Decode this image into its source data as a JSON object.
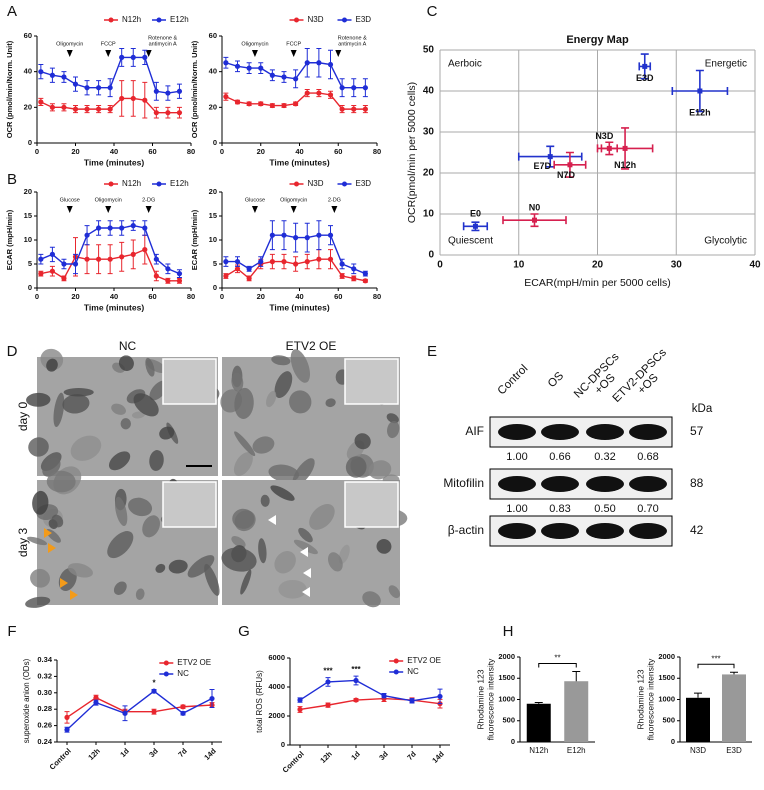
{
  "panel_labels": [
    "A",
    "B",
    "C",
    "D",
    "E",
    "F",
    "G",
    "H"
  ],
  "chart_data": [
    {
      "type": "line",
      "ylabel": "OCR (pmol/min/Norm. Unit)",
      "xlabel": "Time (minutes)",
      "xlim": [
        0,
        80
      ],
      "xticks": [
        0,
        20,
        40,
        60,
        80
      ],
      "ylim": [
        0,
        60
      ],
      "yticks": [
        0,
        20,
        40,
        60
      ],
      "x": [
        2,
        8,
        14,
        20,
        26,
        32,
        38,
        44,
        50,
        56,
        62,
        68,
        74
      ],
      "series": [
        {
          "name": "N12h",
          "color": "#e8262e",
          "values": [
            23,
            20,
            20,
            19,
            19,
            19,
            19,
            25,
            25,
            24,
            17,
            17,
            17
          ],
          "errors": [
            2,
            2,
            2,
            2,
            2,
            2,
            2,
            10,
            10,
            10,
            3,
            3,
            3
          ]
        },
        {
          "name": "E12h",
          "color": "#1f2dd6",
          "values": [
            40,
            38,
            37,
            33,
            31,
            31,
            31,
            48,
            48,
            48,
            29,
            28,
            29
          ],
          "errors": [
            4,
            4,
            3,
            4,
            4,
            4,
            5,
            5,
            5,
            4,
            5,
            4,
            4
          ]
        }
      ],
      "annotations": [
        {
          "text": "Oligomycin",
          "x": 17
        },
        {
          "text": "FCCP",
          "x": 37
        },
        {
          "text": [
            "Rotenone &",
            "antimycin A"
          ],
          "x": 58
        }
      ]
    },
    {
      "type": "line",
      "ylabel": "OCR (pmol/min/Norm. Unit)",
      "xlabel": "Time (minutes)",
      "xlim": [
        0,
        80
      ],
      "xticks": [
        0,
        20,
        40,
        60,
        80
      ],
      "ylim": [
        0,
        60
      ],
      "yticks": [
        0,
        20,
        40,
        60
      ],
      "x": [
        2,
        8,
        14,
        20,
        26,
        32,
        38,
        44,
        50,
        56,
        62,
        68,
        74
      ],
      "series": [
        {
          "name": "N3D",
          "color": "#e8262e",
          "values": [
            26,
            23,
            22,
            22,
            21,
            21,
            22,
            28,
            28,
            27,
            19,
            19,
            19
          ],
          "errors": [
            2,
            1,
            1,
            1,
            1,
            1,
            1,
            2,
            2,
            2,
            2,
            2,
            2
          ]
        },
        {
          "name": "E3D",
          "color": "#1f2dd6",
          "values": [
            45,
            43,
            42,
            42,
            38,
            37,
            36,
            45,
            45,
            44,
            31,
            31,
            31
          ],
          "errors": [
            3,
            3,
            3,
            3,
            3,
            3,
            5,
            8,
            8,
            8,
            5,
            5,
            5
          ]
        }
      ],
      "annotations": [
        {
          "text": "Oligomycin",
          "x": 17
        },
        {
          "text": "FCCP",
          "x": 37
        },
        {
          "text": [
            "Rotenone &",
            "antimycin A"
          ],
          "x": 60
        }
      ]
    },
    {
      "type": "line",
      "ylabel": "ECAR (mpH/min)",
      "xlabel": "Time (minutes)",
      "xlim": [
        0,
        80
      ],
      "xticks": [
        0,
        20,
        40,
        60,
        80
      ],
      "ylim": [
        0,
        20
      ],
      "yticks": [
        0,
        5,
        10,
        15,
        20
      ],
      "x": [
        2,
        8,
        14,
        20,
        26,
        32,
        38,
        44,
        50,
        56,
        62,
        68,
        74
      ],
      "series": [
        {
          "name": "N12h",
          "color": "#e8262e",
          "values": [
            3,
            3.5,
            2,
            6.5,
            6,
            6,
            6,
            6.5,
            7,
            8,
            2.5,
            1.5,
            1.5
          ],
          "errors": [
            0.5,
            1,
            0.5,
            4,
            3,
            3,
            3,
            3,
            3,
            3,
            1,
            0.5,
            0.5
          ]
        },
        {
          "name": "E12h",
          "color": "#1f2dd6",
          "values": [
            6,
            7,
            5,
            5,
            11,
            12.5,
            12.5,
            12.5,
            13,
            12.5,
            6,
            4,
            3
          ],
          "errors": [
            1,
            1.5,
            1,
            2,
            2,
            1.5,
            1.5,
            1.5,
            1,
            1.5,
            1,
            1,
            0.8
          ]
        }
      ],
      "annotations": [
        {
          "text": "Glucose",
          "x": 17
        },
        {
          "text": "Oligomycin",
          "x": 37
        },
        {
          "text": "2-DG",
          "x": 58
        }
      ]
    },
    {
      "type": "line",
      "ylabel": "ECAR (mpH/min)",
      "xlabel": "Time (minutes)",
      "xlim": [
        0,
        80
      ],
      "xticks": [
        0,
        20,
        40,
        60,
        80
      ],
      "ylim": [
        0,
        20
      ],
      "yticks": [
        0,
        5,
        10,
        15,
        20
      ],
      "x": [
        2,
        8,
        14,
        20,
        26,
        32,
        38,
        44,
        50,
        56,
        62,
        68,
        74
      ],
      "series": [
        {
          "name": "N3D",
          "color": "#e8262e",
          "values": [
            2.5,
            4,
            2,
            5,
            5.5,
            5.5,
            5,
            5.5,
            6,
            6,
            2.5,
            2,
            1.5
          ],
          "errors": [
            0.5,
            0.8,
            0.5,
            1,
            1.5,
            1.5,
            1.5,
            1.5,
            2,
            2,
            0.5,
            0.5,
            0.3
          ]
        },
        {
          "name": "E3D",
          "color": "#1f2dd6",
          "values": [
            5.5,
            5.5,
            4,
            5.5,
            11,
            11,
            10.5,
            10.5,
            11,
            11,
            5,
            4,
            3
          ],
          "errors": [
            1,
            1,
            0.5,
            1,
            3,
            3,
            3,
            3,
            3,
            2,
            1,
            1,
            0.5
          ]
        }
      ],
      "annotations": [
        {
          "text": "Glucose",
          "x": 17
        },
        {
          "text": "Oligomycin",
          "x": 37
        },
        {
          "text": "2-DG",
          "x": 58
        }
      ]
    },
    {
      "type": "scatter",
      "title": "Energy Map",
      "xlabel": "ECAR(mpH/min per 5000 cells)",
      "ylabel": "OCR(pmol/min per 5000 cells)",
      "xlim": [
        0,
        40
      ],
      "xticks": [
        0,
        10,
        20,
        30,
        40
      ],
      "ylim": [
        0,
        50
      ],
      "yticks": [
        0,
        10,
        20,
        30,
        40,
        50
      ],
      "grid": true,
      "quadrant_labels": [
        "Aerboic",
        "Energetic",
        "Quiescent",
        "Glycolytic"
      ],
      "points": [
        {
          "label": "E3D",
          "x": 26,
          "y": 46,
          "xerr": 0.7,
          "yerr": 3,
          "color": "#2233cc"
        },
        {
          "label": "E12h",
          "x": 33,
          "y": 40,
          "xerr": 3.5,
          "yerr": 5,
          "color": "#2233cc"
        },
        {
          "label": "N3D",
          "x": 21.5,
          "y": 26,
          "xerr": 1,
          "yerr": 1.5,
          "color": "#d6204f"
        },
        {
          "label": "N12h",
          "x": 23.5,
          "y": 26,
          "xerr": 3.5,
          "yerr": 5,
          "color": "#d6204f"
        },
        {
          "label": "E7D",
          "x": 14,
          "y": 24,
          "xerr": 4,
          "yerr": 2.5,
          "color": "#2233cc"
        },
        {
          "label": "N7D",
          "x": 16.5,
          "y": 22,
          "xerr": 2,
          "yerr": 3,
          "color": "#d6204f"
        },
        {
          "label": "E0",
          "x": 4.5,
          "y": 7,
          "xerr": 1.5,
          "yerr": 1,
          "color": "#2233cc"
        },
        {
          "label": "N0",
          "x": 12,
          "y": 8.5,
          "xerr": 4,
          "yerr": 1.5,
          "color": "#d6204f"
        }
      ]
    },
    {
      "type": "line",
      "ylabel": "superoxide anion (ODs)",
      "categories": [
        "Control",
        "12h",
        "1d",
        "3d",
        "7d",
        "14d"
      ],
      "ylim": [
        0.24,
        0.34
      ],
      "yticks": [
        0.24,
        0.26,
        0.28,
        {
          "value": 0.3,
          "label": "0.30"
        },
        0.32,
        0.34
      ],
      "series": [
        {
          "name": "ETV2 OE",
          "color": "#e8262e",
          "values": [
            0.27,
            0.294,
            0.277,
            0.277,
            0.283,
            0.285
          ],
          "errors": [
            0.007,
            0.003,
            0.003,
            0.003,
            0.002,
            0.003
          ]
        },
        {
          "name": "NC",
          "color": "#1f2dd6",
          "values": [
            0.255,
            0.288,
            0.275,
            0.302,
            0.275,
            0.293
          ],
          "errors": [
            0.003,
            0.003,
            0.009,
            0.002,
            0.002,
            0.011
          ]
        }
      ],
      "annotations": [
        {
          "text": "*",
          "x": "3d"
        }
      ]
    },
    {
      "type": "line",
      "ylabel": "total ROS (RFUs)",
      "categories": [
        "Control",
        "12h",
        "1d",
        "3d",
        "7d",
        "14d"
      ],
      "ylim": [
        0,
        6000
      ],
      "yticks": [
        0,
        2000,
        4000,
        6000
      ],
      "series": [
        {
          "name": "ETV2 OE",
          "color": "#e8262e",
          "values": [
            2450,
            2750,
            3100,
            3200,
            3100,
            2850
          ],
          "errors": [
            200,
            150,
            100,
            200,
            150,
            300
          ]
        },
        {
          "name": "NC",
          "color": "#1f2dd6",
          "values": [
            3100,
            4350,
            4450,
            3400,
            3050,
            3350
          ],
          "errors": [
            150,
            300,
            300,
            150,
            150,
            500
          ]
        }
      ],
      "annotations": [
        {
          "text": "***",
          "x": "12h"
        },
        {
          "text": "***",
          "x": "1d"
        }
      ]
    },
    {
      "type": "bar",
      "ylabel": [
        "Rhodamine 123",
        "fluorescence intensity"
      ],
      "categories": [
        "N12h",
        "E12h"
      ],
      "values": [
        900,
        1430
      ],
      "errors": [
        30,
        230
      ],
      "colors": [
        "#000000",
        "#999999"
      ],
      "ylim": [
        0,
        2000
      ],
      "yticks": [
        0,
        500,
        1000,
        1500,
        2000
      ],
      "significance": "**"
    },
    {
      "type": "bar",
      "ylabel": [
        "Rhodamine 123",
        "fluorescence intensity"
      ],
      "categories": [
        "N3D",
        "E3D"
      ],
      "values": [
        1040,
        1590
      ],
      "errors": [
        110,
        50
      ],
      "colors": [
        "#000000",
        "#999999"
      ],
      "ylim": [
        0,
        2000
      ],
      "yticks": [
        0,
        500,
        1000,
        1500,
        2000
      ],
      "significance": "***"
    }
  ],
  "micrographs": {
    "columns": [
      "NC",
      "ETV2 OE"
    ],
    "rows": [
      "day 0",
      "day 3"
    ]
  },
  "western_blot": {
    "columns": [
      [
        "Control"
      ],
      [
        "OS"
      ],
      [
        "NC-DPSCs",
        "+OS"
      ],
      [
        "ETV2-DPSCs",
        "+OS"
      ]
    ],
    "unit": "kDa",
    "rows": [
      {
        "label": "AIF",
        "kda": 57,
        "ratios": [
          "1.00",
          "0.66",
          "0.32",
          "0.68"
        ]
      },
      {
        "label": "Mitofilin",
        "kda": 88,
        "ratios": [
          "1.00",
          "0.83",
          "0.50",
          "0.70"
        ]
      },
      {
        "label": "β-actin",
        "kda": 42
      }
    ]
  }
}
